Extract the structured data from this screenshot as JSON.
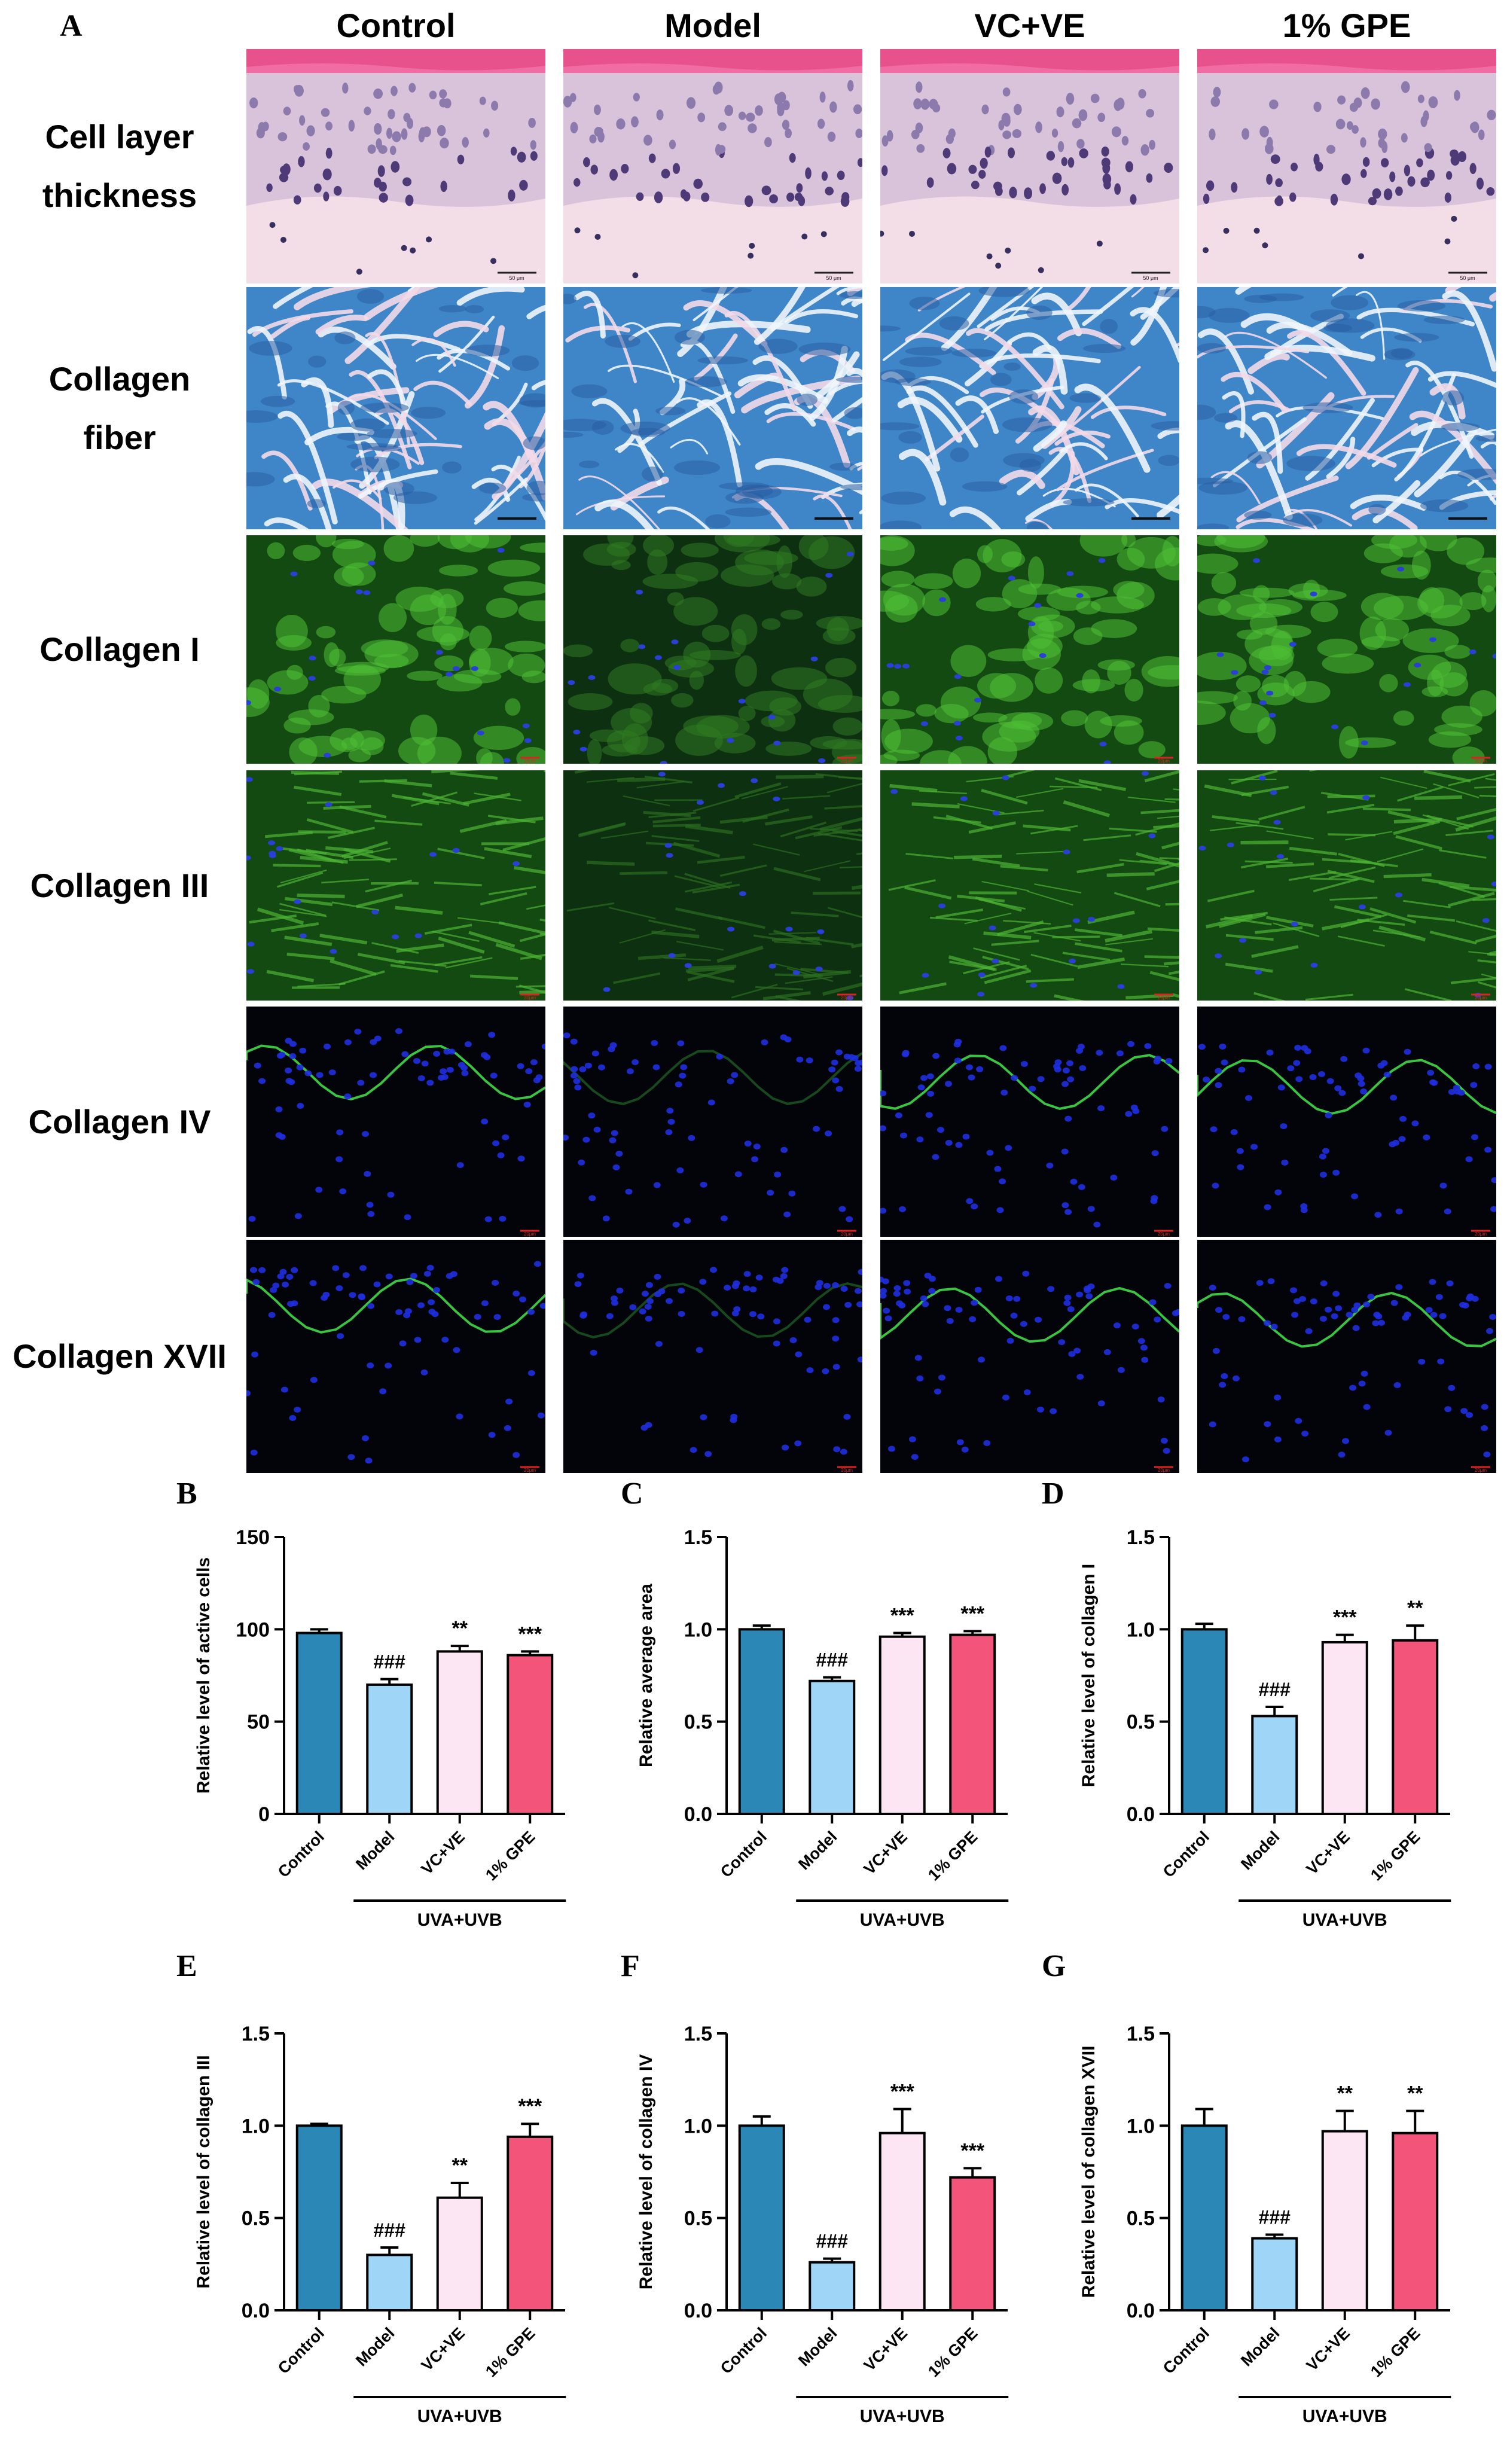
{
  "panel_labels": {
    "a": "A",
    "b": "B",
    "c": "C",
    "d": "D",
    "e": "E",
    "f": "F",
    "g": "G"
  },
  "columns": [
    "Control",
    "Model",
    "VC+VE",
    "1% GPE"
  ],
  "rows": [
    {
      "label_lines": [
        "Cell layer",
        "thickness"
      ],
      "style": "he"
    },
    {
      "label_lines": [
        "Collagen",
        "fiber"
      ],
      "style": "masson"
    },
    {
      "label_lines": [
        "Collagen I"
      ],
      "style": "green"
    },
    {
      "label_lines": [
        "Collagen III"
      ],
      "style": "green-fibrous"
    },
    {
      "label_lines": [
        "Collagen IV"
      ],
      "style": "dark"
    },
    {
      "label_lines": [
        "Collagen XVII"
      ],
      "style": "dark"
    }
  ],
  "scale_bars": {
    "he": "50 μm",
    "fluor": "20μm"
  },
  "colors": {
    "Control": "#2b87b6",
    "Model": "#9fd5f6",
    "VC+VE": "#fde6f4",
    "1% GPE": "#f2547a"
  },
  "chart_data": [
    {
      "type": "bar",
      "panel": "B",
      "categories": [
        "Control",
        "Model",
        "VC+VE",
        "1% GPE"
      ],
      "values": [
        98,
        70,
        88,
        86
      ],
      "errors": [
        2,
        3,
        3,
        2
      ],
      "annotations": [
        "",
        "###",
        "**",
        "***"
      ],
      "ylabel": "Relative level of active cells",
      "ylim": [
        0,
        150
      ],
      "yticks": [
        0,
        50,
        100,
        150
      ],
      "group_label": "UVA+UVB"
    },
    {
      "type": "bar",
      "panel": "C",
      "categories": [
        "Control",
        "Model",
        "VC+VE",
        "1% GPE"
      ],
      "values": [
        1.0,
        0.72,
        0.96,
        0.97
      ],
      "errors": [
        0.02,
        0.02,
        0.02,
        0.02
      ],
      "annotations": [
        "",
        "###",
        "***",
        "***"
      ],
      "ylabel": "Relative average area",
      "ylim": [
        0,
        1.5
      ],
      "yticks": [
        "0.0",
        "0.5",
        "1.0",
        "1.5"
      ],
      "group_label": "UVA+UVB"
    },
    {
      "type": "bar",
      "panel": "D",
      "categories": [
        "Control",
        "Model",
        "VC+VE",
        "1% GPE"
      ],
      "values": [
        1.0,
        0.53,
        0.93,
        0.94
      ],
      "errors": [
        0.03,
        0.05,
        0.04,
        0.08
      ],
      "annotations": [
        "",
        "###",
        "***",
        "**"
      ],
      "ylabel": "Relative level of collagen I",
      "ylim": [
        0,
        1.5
      ],
      "yticks": [
        "0.0",
        "0.5",
        "1.0",
        "1.5"
      ],
      "group_label": "UVA+UVB"
    },
    {
      "type": "bar",
      "panel": "E",
      "categories": [
        "Control",
        "Model",
        "VC+VE",
        "1% GPE"
      ],
      "values": [
        1.0,
        0.3,
        0.61,
        0.94
      ],
      "errors": [
        0.01,
        0.04,
        0.08,
        0.07
      ],
      "annotations": [
        "",
        "###",
        "**",
        "***"
      ],
      "ylabel": "Relative level of collagen III",
      "ylim": [
        0,
        1.5
      ],
      "yticks": [
        "0.0",
        "0.5",
        "1.0",
        "1.5"
      ],
      "group_label": "UVA+UVB"
    },
    {
      "type": "bar",
      "panel": "F",
      "categories": [
        "Control",
        "Model",
        "VC+VE",
        "1% GPE"
      ],
      "values": [
        1.0,
        0.26,
        0.96,
        0.72
      ],
      "errors": [
        0.05,
        0.02,
        0.13,
        0.05
      ],
      "annotations": [
        "",
        "###",
        "***",
        "***"
      ],
      "ylabel": "Relative level of collagen IV",
      "ylim": [
        0,
        1.5
      ],
      "yticks": [
        "0.0",
        "0.5",
        "1.0",
        "1.5"
      ],
      "group_label": "UVA+UVB"
    },
    {
      "type": "bar",
      "panel": "G",
      "categories": [
        "Control",
        "Model",
        "VC+VE",
        "1% GPE"
      ],
      "values": [
        1.0,
        0.39,
        0.97,
        0.96
      ],
      "errors": [
        0.09,
        0.02,
        0.11,
        0.12
      ],
      "annotations": [
        "",
        "###",
        "**",
        "**"
      ],
      "ylabel": "Relative level of collagen XVII",
      "ylim": [
        0,
        1.5
      ],
      "yticks": [
        "0.0",
        "0.5",
        "1.0",
        "1.5"
      ],
      "group_label": "UVA+UVB"
    }
  ]
}
